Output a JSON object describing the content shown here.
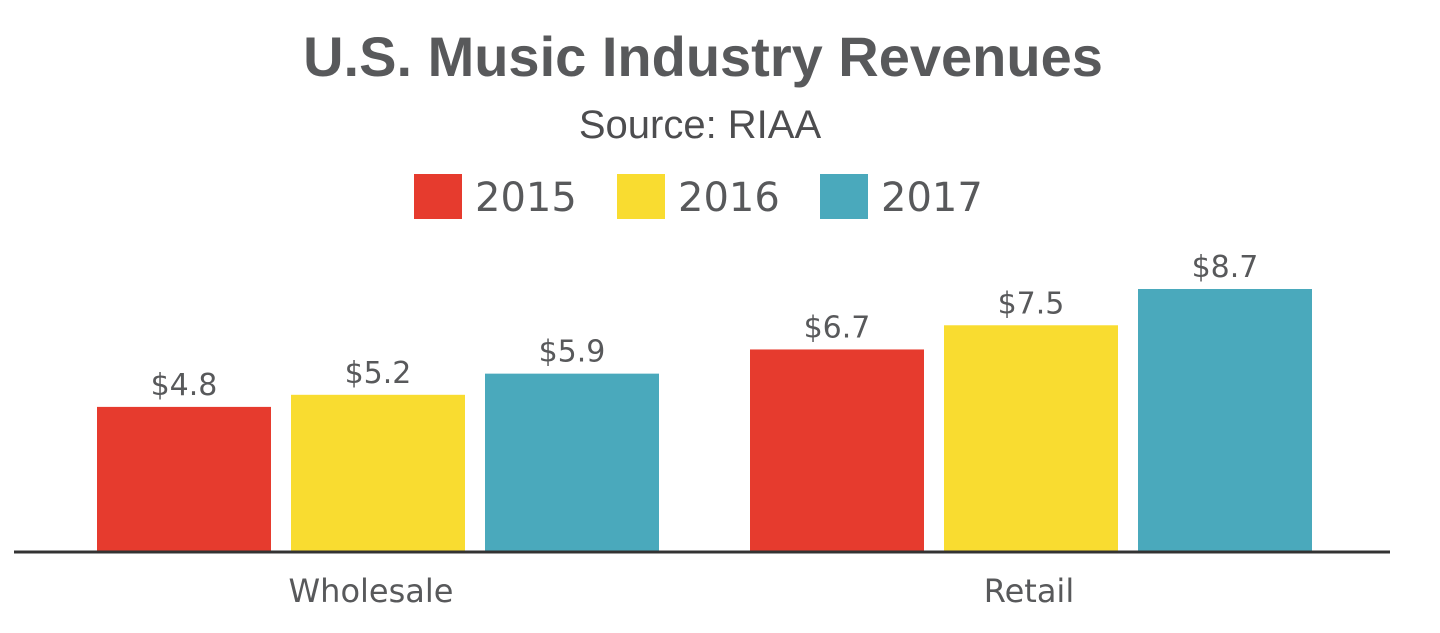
{
  "chart_data": {
    "type": "bar",
    "title": "U.S. Music Industry Revenues",
    "subtitle": "Source: RIAA",
    "categories": [
      "Wholesale",
      "Retail"
    ],
    "series": [
      {
        "name": "2015",
        "color": "#e63b2e",
        "values": [
          4.8,
          6.7
        ],
        "labels": [
          "$4.8",
          "$6.7"
        ]
      },
      {
        "name": "2016",
        "color": "#f9dc30",
        "values": [
          5.2,
          7.5
        ],
        "labels": [
          "$5.2",
          "$7.5"
        ]
      },
      {
        "name": "2017",
        "color": "#4aa9bc",
        "values": [
          5.9,
          8.7
        ],
        "labels": [
          "$5.9",
          "$8.7"
        ]
      }
    ],
    "ylim": [
      0,
      8.7
    ],
    "grid": false,
    "legend_position": "top-center",
    "axis_color": "#333333"
  }
}
